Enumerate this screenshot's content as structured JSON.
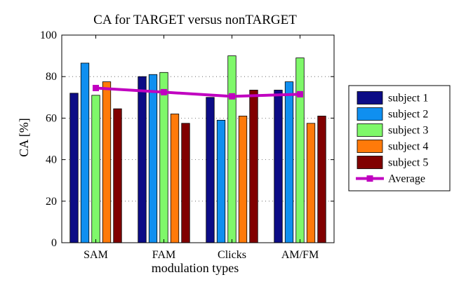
{
  "chart_data": {
    "type": "bar",
    "title": "CA for TARGET versus nonTARGET",
    "xlabel": "modulation types",
    "ylabel": "CA [%]",
    "ylim": [
      0,
      100
    ],
    "yticks": [
      0,
      20,
      40,
      60,
      80,
      100
    ],
    "grid": "dotted horizontal",
    "legend_position": "right",
    "categories": [
      "SAM",
      "FAM",
      "Clicks",
      "AM/FM"
    ],
    "series": [
      {
        "name": "subject 1",
        "color": "#0c0c86",
        "values": [
          72,
          80,
          70,
          73.5
        ]
      },
      {
        "name": "subject 2",
        "color": "#0f8ff0",
        "values": [
          86.5,
          81,
          59,
          77.5
        ]
      },
      {
        "name": "subject 3",
        "color": "#7ff86a",
        "values": [
          71,
          82,
          90,
          89
        ]
      },
      {
        "name": "subject 4",
        "color": "#ff7a0a",
        "values": [
          77.5,
          62,
          61,
          57.5
        ]
      },
      {
        "name": "subject 5",
        "color": "#810000",
        "values": [
          64.5,
          57.5,
          73.5,
          61
        ]
      }
    ],
    "average": {
      "name": "Average",
      "color": "#c000c0",
      "values": [
        74.5,
        72.5,
        70.5,
        71.5
      ]
    }
  }
}
